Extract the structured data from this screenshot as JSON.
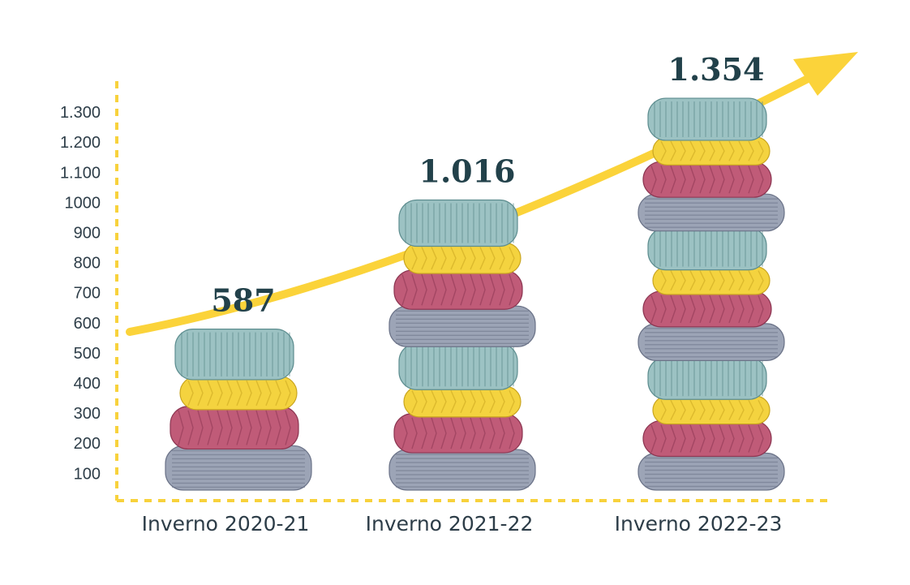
{
  "chart_data": {
    "type": "bar",
    "title": "",
    "xlabel": "",
    "ylabel": "",
    "ylim": [
      0,
      1350
    ],
    "yticks": [
      100,
      200,
      300,
      400,
      500,
      600,
      700,
      800,
      900,
      1000,
      1100,
      1200,
      1300
    ],
    "ytick_labels": [
      "100",
      "200",
      "300",
      "400",
      "500",
      "600",
      "700",
      "800",
      "900",
      "1000",
      "1.100",
      "1.200",
      "1.300"
    ],
    "categories": [
      "Inverno 2020-21",
      "Inverno 2021-22",
      "Inverno 2022-23"
    ],
    "values": [
      587,
      1016,
      1354
    ],
    "value_labels": [
      "587",
      "1.016",
      "1.354"
    ],
    "trend_arrow": true,
    "grid": false,
    "legend": "none"
  },
  "colors": {
    "axis": "#f8d23c",
    "arrow": "#fbd33a",
    "text": "#2d3d48",
    "value_text": "#22414a",
    "sweater_teal": "#9cc2c3",
    "sweater_yellow": "#f4d33f",
    "sweater_rose": "#c05b78",
    "sweater_slate": "#9ca4b6"
  },
  "icons": {
    "bar_mark": "stacked-sweaters-icon",
    "trend": "up-trend-arrow-icon"
  }
}
